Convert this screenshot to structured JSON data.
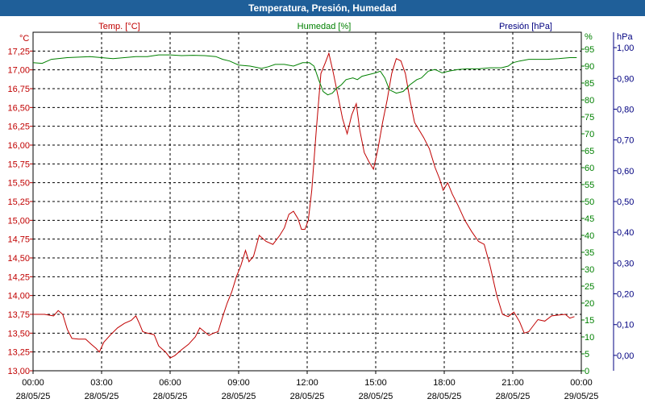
{
  "window": {
    "title": "Temperatura, Presión, Humedad"
  },
  "colors": {
    "temp": "#c00000",
    "hum": "#008000",
    "pres": "#000080",
    "title_bg": "#1f5f99"
  },
  "chart_data": {
    "type": "line",
    "title": "Temperatura, Presión, Humedad",
    "grid": true,
    "x_ticks": [
      {
        "time": "00:00",
        "date": "28/05/25"
      },
      {
        "time": "03:00",
        "date": "28/05/25"
      },
      {
        "time": "06:00",
        "date": "28/05/25"
      },
      {
        "time": "09:00",
        "date": "28/05/25"
      },
      {
        "time": "12:00",
        "date": "28/05/25"
      },
      {
        "time": "15:00",
        "date": "28/05/25"
      },
      {
        "time": "18:00",
        "date": "28/05/25"
      },
      {
        "time": "21:00",
        "date": "28/05/25"
      },
      {
        "time": "00:00",
        "date": "29/05/25"
      }
    ],
    "x_range_hours": [
      0,
      24
    ],
    "axes": {
      "temp": {
        "label": "Temp. [°C]",
        "unit": "°C",
        "range": [
          13.0,
          17.5
        ],
        "ticks": [
          "13,00",
          "13,25",
          "13,50",
          "13,75",
          "14,00",
          "14,25",
          "14,50",
          "14,75",
          "15,00",
          "15,25",
          "15,50",
          "15,75",
          "16,00",
          "16,25",
          "16,50",
          "16,75",
          "17,00",
          "17,25"
        ]
      },
      "hum": {
        "label": "Humedad [%]",
        "unit": "%",
        "range": [
          0,
          100
        ],
        "ticks": [
          "0",
          "5",
          "10",
          "15",
          "20",
          "25",
          "30",
          "35",
          "40",
          "45",
          "50",
          "55",
          "60",
          "65",
          "70",
          "75",
          "80",
          "85",
          "90",
          "95"
        ]
      },
      "pres": {
        "label": "Presión [hPa]",
        "unit": "hPa",
        "range": [
          -0.05,
          1.05
        ],
        "ticks": [
          "0,00",
          "0,10",
          "0,20",
          "0,30",
          "0,40",
          "0,50",
          "0,60",
          "0,70",
          "0,80",
          "0,90",
          "1,00"
        ]
      }
    },
    "series": [
      {
        "name": "Temp. [°C]",
        "axis": "temp",
        "points": [
          [
            0.0,
            13.75
          ],
          [
            0.5,
            13.75
          ],
          [
            0.9,
            13.73
          ],
          [
            1.1,
            13.8
          ],
          [
            1.3,
            13.75
          ],
          [
            1.5,
            13.55
          ],
          [
            1.7,
            13.43
          ],
          [
            2.0,
            13.42
          ],
          [
            2.3,
            13.42
          ],
          [
            2.55,
            13.35
          ],
          [
            2.75,
            13.3
          ],
          [
            2.9,
            13.25
          ],
          [
            3.1,
            13.38
          ],
          [
            3.4,
            13.48
          ],
          [
            3.7,
            13.57
          ],
          [
            4.0,
            13.63
          ],
          [
            4.3,
            13.67
          ],
          [
            4.5,
            13.73
          ],
          [
            4.65,
            13.63
          ],
          [
            4.8,
            13.52
          ],
          [
            5.0,
            13.5
          ],
          [
            5.3,
            13.48
          ],
          [
            5.5,
            13.33
          ],
          [
            5.8,
            13.25
          ],
          [
            6.0,
            13.17
          ],
          [
            6.2,
            13.2
          ],
          [
            6.5,
            13.28
          ],
          [
            6.8,
            13.35
          ],
          [
            7.1,
            13.45
          ],
          [
            7.3,
            13.57
          ],
          [
            7.5,
            13.52
          ],
          [
            7.7,
            13.47
          ],
          [
            7.9,
            13.5
          ],
          [
            8.1,
            13.52
          ],
          [
            8.3,
            13.72
          ],
          [
            8.5,
            13.9
          ],
          [
            8.7,
            14.05
          ],
          [
            8.9,
            14.25
          ],
          [
            9.1,
            14.4
          ],
          [
            9.3,
            14.6
          ],
          [
            9.45,
            14.45
          ],
          [
            9.65,
            14.52
          ],
          [
            9.9,
            14.8
          ],
          [
            10.2,
            14.72
          ],
          [
            10.5,
            14.68
          ],
          [
            10.8,
            14.8
          ],
          [
            11.0,
            14.9
          ],
          [
            11.2,
            15.08
          ],
          [
            11.4,
            15.12
          ],
          [
            11.6,
            15.02
          ],
          [
            11.75,
            14.88
          ],
          [
            11.9,
            14.88
          ],
          [
            12.05,
            15.0
          ],
          [
            12.2,
            15.4
          ],
          [
            12.4,
            16.2
          ],
          [
            12.6,
            16.95
          ],
          [
            12.8,
            17.1
          ],
          [
            12.95,
            17.22
          ],
          [
            13.15,
            16.95
          ],
          [
            13.35,
            16.65
          ],
          [
            13.55,
            16.35
          ],
          [
            13.75,
            16.15
          ],
          [
            13.95,
            16.4
          ],
          [
            14.15,
            16.55
          ],
          [
            14.3,
            16.2
          ],
          [
            14.5,
            15.9
          ],
          [
            14.7,
            15.78
          ],
          [
            14.9,
            15.68
          ],
          [
            15.1,
            15.95
          ],
          [
            15.3,
            16.3
          ],
          [
            15.5,
            16.6
          ],
          [
            15.7,
            16.95
          ],
          [
            15.9,
            17.15
          ],
          [
            16.1,
            17.12
          ],
          [
            16.3,
            16.95
          ],
          [
            16.5,
            16.6
          ],
          [
            16.7,
            16.3
          ],
          [
            16.9,
            16.2
          ],
          [
            17.1,
            16.1
          ],
          [
            17.35,
            15.95
          ],
          [
            17.6,
            15.7
          ],
          [
            17.8,
            15.55
          ],
          [
            17.95,
            15.4
          ],
          [
            18.15,
            15.5
          ],
          [
            18.35,
            15.35
          ],
          [
            18.6,
            15.2
          ],
          [
            18.9,
            15.0
          ],
          [
            19.2,
            14.85
          ],
          [
            19.5,
            14.72
          ],
          [
            19.75,
            14.68
          ],
          [
            20.0,
            14.4
          ],
          [
            20.3,
            14.0
          ],
          [
            20.55,
            13.75
          ],
          [
            20.8,
            13.72
          ],
          [
            21.05,
            13.78
          ],
          [
            21.3,
            13.65
          ],
          [
            21.5,
            13.5
          ],
          [
            21.7,
            13.52
          ],
          [
            21.9,
            13.6
          ],
          [
            22.1,
            13.68
          ],
          [
            22.4,
            13.66
          ],
          [
            22.7,
            13.73
          ],
          [
            23.0,
            13.74
          ],
          [
            23.3,
            13.75
          ],
          [
            23.5,
            13.7
          ],
          [
            23.7,
            13.72
          ]
        ]
      },
      {
        "name": "Humedad [%]",
        "axis": "hum",
        "points": [
          [
            0.0,
            91.0
          ],
          [
            0.4,
            90.8
          ],
          [
            0.8,
            92.0
          ],
          [
            1.5,
            92.5
          ],
          [
            2.5,
            92.8
          ],
          [
            3.0,
            92.5
          ],
          [
            3.5,
            92.2
          ],
          [
            4.0,
            92.5
          ],
          [
            4.5,
            92.8
          ],
          [
            5.0,
            92.8
          ],
          [
            5.5,
            93.3
          ],
          [
            6.0,
            93.3
          ],
          [
            6.5,
            93.1
          ],
          [
            7.0,
            93.2
          ],
          [
            7.5,
            93.1
          ],
          [
            8.0,
            92.8
          ],
          [
            8.3,
            92.0
          ],
          [
            8.6,
            91.5
          ],
          [
            9.0,
            90.3
          ],
          [
            9.5,
            90.0
          ],
          [
            10.0,
            89.3
          ],
          [
            10.3,
            89.8
          ],
          [
            10.6,
            90.5
          ],
          [
            11.0,
            90.5
          ],
          [
            11.4,
            90.0
          ],
          [
            11.8,
            91.0
          ],
          [
            12.1,
            91.0
          ],
          [
            12.3,
            90.0
          ],
          [
            12.5,
            86.0
          ],
          [
            12.7,
            82.5
          ],
          [
            12.9,
            81.5
          ],
          [
            13.1,
            82.0
          ],
          [
            13.3,
            83.5
          ],
          [
            13.5,
            84.5
          ],
          [
            13.7,
            86.0
          ],
          [
            14.0,
            86.5
          ],
          [
            14.2,
            86.0
          ],
          [
            14.4,
            87.0
          ],
          [
            14.7,
            87.5
          ],
          [
            15.0,
            88.0
          ],
          [
            15.2,
            88.5
          ],
          [
            15.4,
            86.5
          ],
          [
            15.6,
            83.0
          ],
          [
            15.9,
            82.0
          ],
          [
            16.2,
            82.5
          ],
          [
            16.5,
            84.5
          ],
          [
            16.8,
            86.0
          ],
          [
            17.0,
            86.5
          ],
          [
            17.3,
            88.5
          ],
          [
            17.6,
            89.0
          ],
          [
            17.9,
            88.0
          ],
          [
            18.2,
            88.5
          ],
          [
            18.6,
            89.0
          ],
          [
            19.0,
            89.2
          ],
          [
            19.5,
            89.2
          ],
          [
            20.0,
            89.5
          ],
          [
            20.5,
            89.5
          ],
          [
            20.8,
            90.0
          ],
          [
            21.0,
            91.0
          ],
          [
            21.3,
            91.5
          ],
          [
            21.7,
            92.0
          ],
          [
            22.5,
            92.0
          ],
          [
            23.0,
            92.2
          ],
          [
            23.5,
            92.5
          ],
          [
            23.8,
            92.5
          ]
        ]
      }
    ]
  }
}
